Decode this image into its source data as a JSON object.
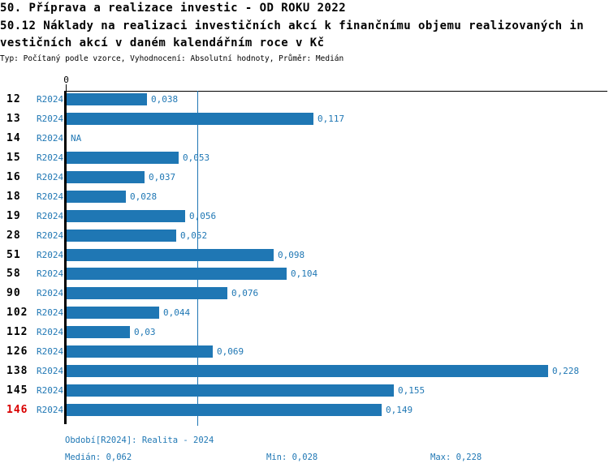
{
  "header": {
    "title": "50. Příprava a realizace investic - OD ROKU 2022",
    "subtitle_line1": "50.12 Náklady na realizaci investičních akcí k finančnímu objemu realizovaných in",
    "subtitle_line2": "vestičních akcí v daném kalendářním roce v Kč",
    "meta": "Typ: Počítaný podle vzorce, Vyhodnocení: Absolutní hodnoty, Průměr: Medián"
  },
  "chart_data": {
    "type": "bar",
    "orientation": "horizontal",
    "title": "50.12 Náklady na realizaci investičních akcí k finančnímu objemu realizovaných investičních akcí v daném kalendářním roce v Kč",
    "x_tick_zero": "0",
    "series_label": "R2024",
    "categories": [
      "12",
      "13",
      "14",
      "15",
      "16",
      "18",
      "19",
      "28",
      "51",
      "58",
      "90",
      "102",
      "112",
      "126",
      "138",
      "145",
      "146"
    ],
    "values": [
      0.038,
      0.117,
      null,
      0.053,
      0.037,
      0.028,
      0.056,
      0.052,
      0.098,
      0.104,
      0.076,
      0.044,
      0.03,
      0.069,
      0.228,
      0.155,
      0.149
    ],
    "value_labels": [
      "0,038",
      "0,117",
      "NA",
      "0,053",
      "0,037",
      "0,028",
      "0,056",
      "0,052",
      "0,098",
      "0,104",
      "0,076",
      "0,044",
      "0,03",
      "0,069",
      "0,228",
      "0,155",
      "0,149"
    ],
    "highlight_category": "146",
    "xlim": [
      0,
      0.256
    ],
    "median_line_value": 0.062,
    "grid": false,
    "legend": false,
    "colors": {
      "bar": "#1f77b4",
      "highlight": "#d90000",
      "axis": "#000000"
    }
  },
  "footer": {
    "period": "Období[R2024]: Realita - 2024",
    "median": "Medián: 0,062",
    "min": "Min: 0,028",
    "max": "Max: 0,228"
  }
}
